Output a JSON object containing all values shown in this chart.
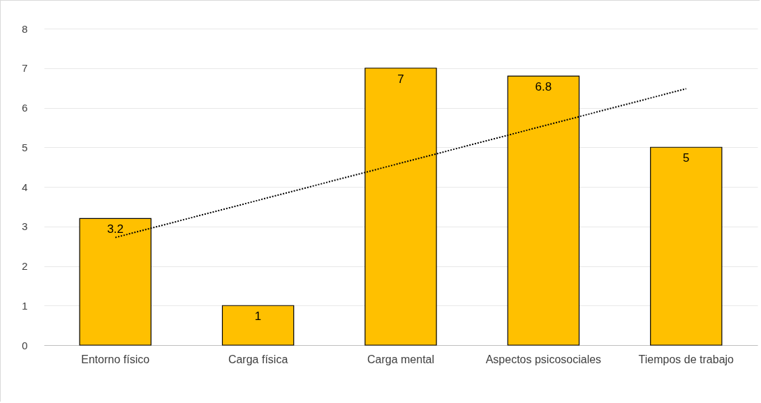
{
  "chart_data": {
    "type": "bar",
    "categories": [
      "Entorno físico",
      "Carga física",
      "Carga mental",
      "Aspectos psicosociales",
      "Tiempos de trabajo"
    ],
    "series": [
      {
        "color": "#ffc000",
        "values": [
          3.2,
          1,
          7,
          6.8,
          5
        ],
        "value_labels": [
          "3.2",
          "1",
          "7",
          "6.8",
          "5"
        ]
      },
      {
        "type": "line",
        "color": "#000000",
        "line_style": "dotted",
        "x": [
          "Entorno físico",
          "Tiempos de trabajo"
        ],
        "values": [
          2.72,
          6.48
        ]
      }
    ],
    "ylim": [
      0,
      8
    ],
    "yticks": [
      0,
      1,
      2,
      3,
      4,
      5,
      6,
      7,
      8
    ],
    "grid": "y"
  }
}
